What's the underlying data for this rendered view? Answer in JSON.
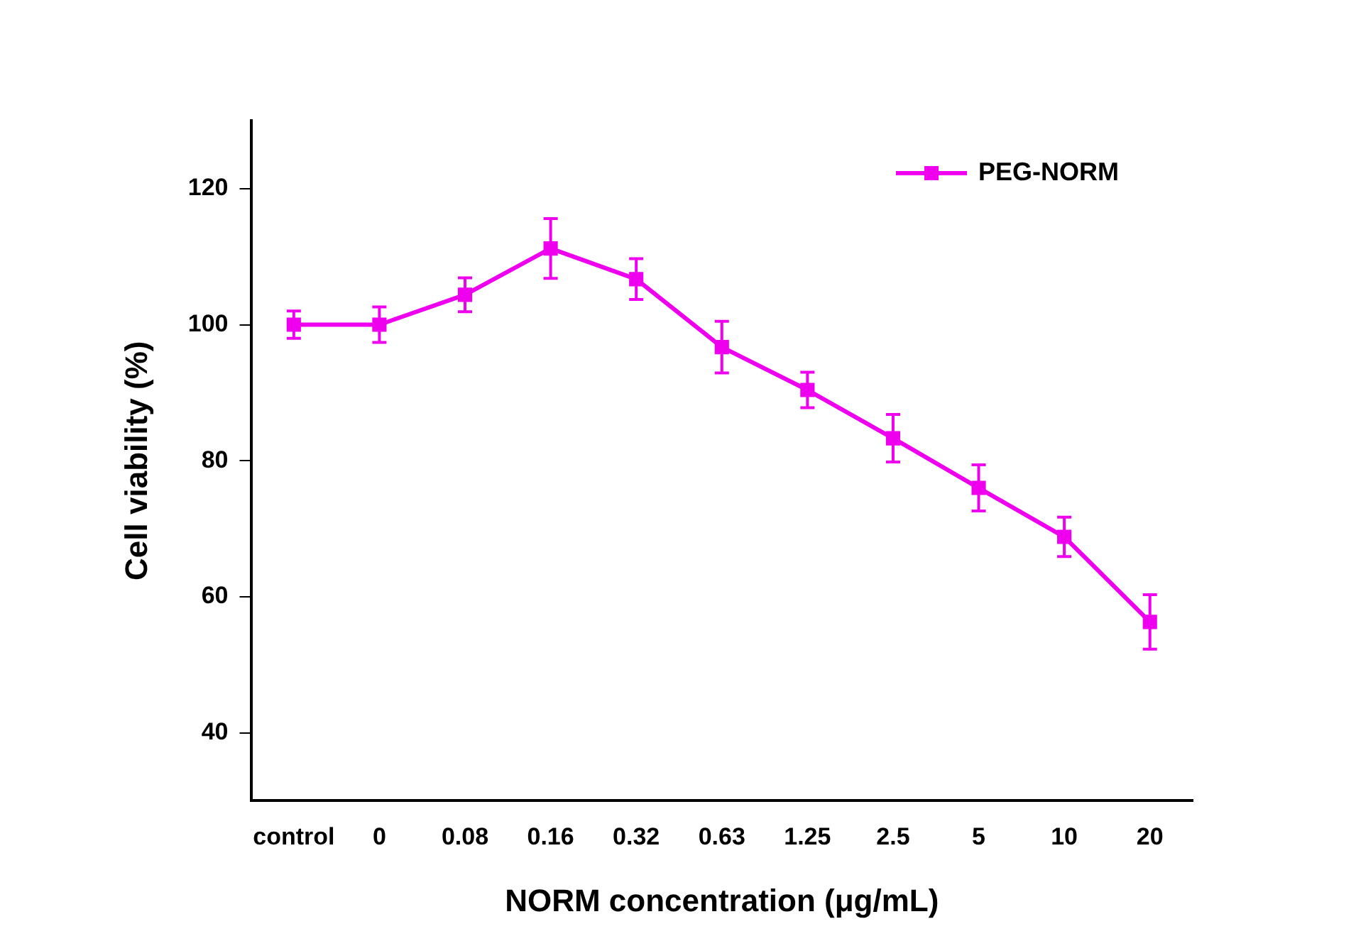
{
  "chart_data": {
    "type": "line",
    "xlabel": "NORM concentration (μg/mL)",
    "ylabel": "Cell viability (%)",
    "categories": [
      "control",
      "0",
      "0.08",
      "0.16",
      "0.32",
      "0.63",
      "1.25",
      "2.5",
      "5",
      "10",
      "20"
    ],
    "series": [
      {
        "name": "PEG-NORM",
        "color": "#ee00ee",
        "values": [
          100,
          100,
          104.4,
          111.2,
          106.7,
          96.7,
          90.4,
          83.3,
          76,
          68.8,
          56.3
        ],
        "errors": [
          2,
          2.6,
          2.5,
          4.4,
          3,
          3.8,
          2.6,
          3.5,
          3.4,
          2.9,
          4
        ]
      }
    ],
    "ylim": [
      30,
      130
    ],
    "yticks": [
      40,
      60,
      80,
      100,
      120
    ],
    "grid": false,
    "legend": "top right",
    "marker": "square",
    "line_style": "solid"
  }
}
